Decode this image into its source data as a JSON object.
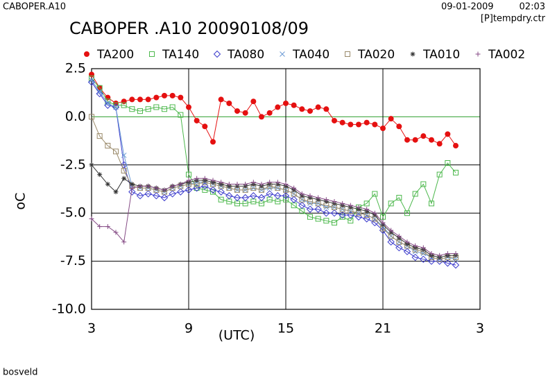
{
  "chart_data": {
    "type": "line",
    "title": "CABOPER .A10 20090108/09",
    "annotations": [
      "CABOPER.A10",
      "09-01-2009",
      "02:03",
      "[P]tempdry.ctr",
      "bosveld"
    ],
    "xlabel": "(UTC)",
    "ylabel": "oC",
    "x": [
      3,
      3.5,
      4,
      4.5,
      5,
      5.5,
      6,
      6.5,
      7,
      7.5,
      8,
      8.5,
      9,
      9.5,
      10,
      10.5,
      11,
      11.5,
      12,
      12.5,
      13,
      13.5,
      14,
      14.5,
      15,
      15.5,
      16,
      16.5,
      17,
      17.5,
      18,
      18.5,
      19,
      19.5,
      20,
      20.5,
      21,
      21.5,
      22,
      22.5,
      23,
      23.5,
      24,
      24.5,
      25,
      25.5
    ],
    "xlim": [
      3,
      27
    ],
    "xticks": [
      3,
      9,
      15,
      21,
      {
        "value": 27,
        "label": "3"
      }
    ],
    "ylim": [
      -10,
      2.5
    ],
    "yticks": [
      2.5,
      {
        "value": 0,
        "label": "0.0"
      },
      -2.5,
      {
        "value": -5,
        "label": "-5.0"
      },
      -7.5,
      {
        "value": -10,
        "label": "-10.0"
      }
    ],
    "grid": true,
    "grid_color": "#000000",
    "zero_line_color": "#2e9e2e",
    "series": [
      {
        "name": "TA200",
        "color": "#e51010",
        "marker": "dot",
        "values": [
          2.2,
          1.5,
          1.0,
          0.7,
          0.8,
          0.9,
          0.9,
          0.9,
          1.0,
          1.1,
          1.1,
          1.0,
          0.5,
          -0.2,
          -0.5,
          -1.3,
          0.9,
          0.7,
          0.3,
          0.2,
          0.8,
          0.0,
          0.2,
          0.5,
          0.7,
          0.6,
          0.4,
          0.3,
          0.5,
          0.4,
          -0.2,
          -0.3,
          -0.4,
          -0.4,
          -0.3,
          -0.4,
          -0.6,
          -0.1,
          -0.5,
          -1.2,
          -1.2,
          -1.0,
          -1.2,
          -1.4,
          -0.9,
          -1.5
        ]
      },
      {
        "name": "TA140",
        "color": "#4cb84c",
        "marker": "square",
        "values": [
          2.0,
          1.5,
          0.8,
          0.6,
          0.6,
          0.4,
          0.3,
          0.4,
          0.5,
          0.4,
          0.5,
          0.1,
          -3.0,
          -3.7,
          -3.8,
          -3.9,
          -4.3,
          -4.4,
          -4.5,
          -4.5,
          -4.4,
          -4.5,
          -4.3,
          -4.4,
          -4.3,
          -4.6,
          -4.9,
          -5.2,
          -5.3,
          -5.4,
          -5.5,
          -5.2,
          -5.4,
          -4.7,
          -4.5,
          -4.0,
          -5.2,
          -4.5,
          -4.2,
          -5.0,
          -4.0,
          -3.5,
          -4.5,
          -3.0,
          -2.4,
          -2.9
        ]
      },
      {
        "name": "TA080",
        "color": "#3a3acc",
        "marker": "diamond",
        "values": [
          1.8,
          1.2,
          0.6,
          0.5,
          -2.5,
          -3.9,
          -4.1,
          -4.0,
          -4.1,
          -4.2,
          -4.0,
          -3.9,
          -3.8,
          -3.7,
          -3.6,
          -3.8,
          -3.9,
          -4.1,
          -4.2,
          -4.2,
          -4.1,
          -4.2,
          -4.0,
          -4.1,
          -4.1,
          -4.3,
          -4.6,
          -4.8,
          -4.8,
          -5.0,
          -5.0,
          -5.1,
          -5.1,
          -5.2,
          -5.3,
          -5.5,
          -5.9,
          -6.5,
          -6.8,
          -7.0,
          -7.3,
          -7.4,
          -7.5,
          -7.5,
          -7.6,
          -7.7
        ]
      },
      {
        "name": "TA040",
        "color": "#6a9ad4",
        "marker": "cross",
        "values": [
          1.9,
          1.3,
          0.7,
          0.5,
          -2.0,
          -3.6,
          -3.7,
          -3.7,
          -3.8,
          -3.9,
          -3.7,
          -3.6,
          -3.5,
          -3.4,
          -3.4,
          -3.5,
          -3.6,
          -3.7,
          -3.8,
          -3.8,
          -3.7,
          -3.8,
          -3.7,
          -3.7,
          -3.8,
          -4.0,
          -4.3,
          -4.5,
          -4.5,
          -4.7,
          -4.7,
          -4.8,
          -4.9,
          -5.0,
          -5.1,
          -5.3,
          -5.7,
          -6.2,
          -6.5,
          -6.7,
          -7.0,
          -7.1,
          -7.3,
          -7.4,
          -7.3,
          -7.4
        ]
      },
      {
        "name": "TA020",
        "color": "#9a8a6a",
        "marker": "square",
        "values": [
          0.0,
          -1.0,
          -1.5,
          -1.8,
          -2.8,
          -3.6,
          -3.7,
          -3.7,
          -3.8,
          -3.9,
          -3.7,
          -3.6,
          -3.5,
          -3.5,
          -3.4,
          -3.5,
          -3.6,
          -3.7,
          -3.8,
          -3.8,
          -3.7,
          -3.8,
          -3.6,
          -3.7,
          -3.8,
          -4.0,
          -4.3,
          -4.4,
          -4.5,
          -4.6,
          -4.7,
          -4.8,
          -4.9,
          -5.0,
          -5.1,
          -5.3,
          -5.8,
          -6.2,
          -6.5,
          -6.7,
          -6.9,
          -7.0,
          -7.3,
          -7.4,
          -7.3,
          -7.3
        ]
      },
      {
        "name": "TA010",
        "color": "#333333",
        "marker": "star",
        "values": [
          -2.5,
          -3.0,
          -3.5,
          -3.9,
          -3.2,
          -3.5,
          -3.6,
          -3.6,
          -3.7,
          -3.8,
          -3.6,
          -3.5,
          -3.4,
          -3.3,
          -3.3,
          -3.4,
          -3.5,
          -3.6,
          -3.6,
          -3.6,
          -3.5,
          -3.6,
          -3.5,
          -3.5,
          -3.6,
          -3.8,
          -4.1,
          -4.2,
          -4.3,
          -4.4,
          -4.5,
          -4.6,
          -4.7,
          -4.8,
          -4.9,
          -5.1,
          -5.6,
          -6.0,
          -6.3,
          -6.6,
          -6.8,
          -6.9,
          -7.2,
          -7.3,
          -7.2,
          -7.2
        ]
      },
      {
        "name": "TA002",
        "color": "#844a84",
        "marker": "plus",
        "values": [
          -5.3,
          -5.7,
          -5.7,
          -6.0,
          -6.5,
          -3.7,
          -3.6,
          -3.6,
          -3.7,
          -3.8,
          -3.6,
          -3.5,
          -3.3,
          -3.2,
          -3.2,
          -3.3,
          -3.4,
          -3.5,
          -3.5,
          -3.5,
          -3.4,
          -3.5,
          -3.4,
          -3.4,
          -3.5,
          -3.7,
          -4.0,
          -4.1,
          -4.2,
          -4.3,
          -4.4,
          -4.5,
          -4.6,
          -4.7,
          -4.8,
          -5.0,
          -5.5,
          -5.9,
          -6.2,
          -6.5,
          -6.7,
          -6.8,
          -7.1,
          -7.2,
          -7.1,
          -7.1
        ]
      }
    ]
  }
}
